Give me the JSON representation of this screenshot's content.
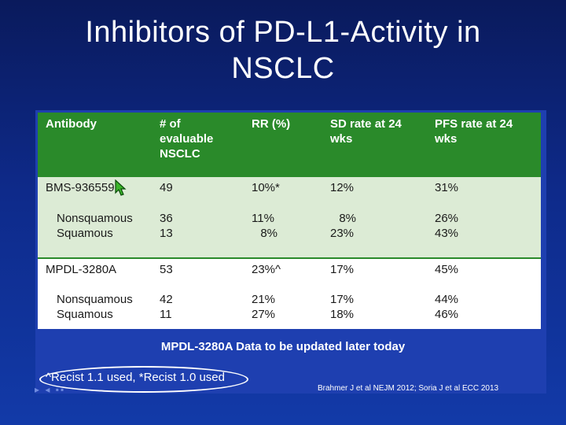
{
  "title": {
    "line1": "Inhibitors of PD-L1-Activity in",
    "line2": "NSCLC"
  },
  "table": {
    "headers": {
      "antibody": "Antibody",
      "evaluable_1": "# of",
      "evaluable_2": "evaluable",
      "evaluable_3": "NSCLC",
      "rr": "RR (%)",
      "sd_1": "SD rate at 24",
      "sd_2": "wks",
      "pfs_1": "PFS rate at 24",
      "pfs_2": "wks"
    },
    "groups": [
      {
        "antibody": "BMS-936559",
        "n": "49",
        "rr": "10%*",
        "sd": "12%",
        "pfs": "31%",
        "sub": [
          {
            "label": "Nonsquamous",
            "n": "36",
            "rr": "11%",
            "sd": "8%",
            "pfs": "26%"
          },
          {
            "label": "Squamous",
            "n": "13",
            "rr": "8%",
            "sd": "23%",
            "pfs": "43%"
          }
        ]
      },
      {
        "antibody": "MPDL-3280A",
        "n": "53",
        "rr": "23%^",
        "sd": "17%",
        "pfs": "45%",
        "sub": [
          {
            "label": "Nonsquamous",
            "n": "42",
            "rr": "21%",
            "sd": "17%",
            "pfs": "44%"
          },
          {
            "label": "Squamous",
            "n": "11",
            "rr": "27%",
            "sd": "18%",
            "pfs": "46%"
          }
        ]
      }
    ]
  },
  "footer": {
    "update_note": "MPDL-3280A Data to be updated later today",
    "recist_note": "^Recist 1.1 used, *Recist 1.0 used",
    "citation": "Brahmer J et al NEJM 2012; Soria J et al ECC 2013"
  },
  "colors": {
    "header_green": "#2a8a2a",
    "band_green": "#dcebd5",
    "background": "#0e2a8a"
  }
}
